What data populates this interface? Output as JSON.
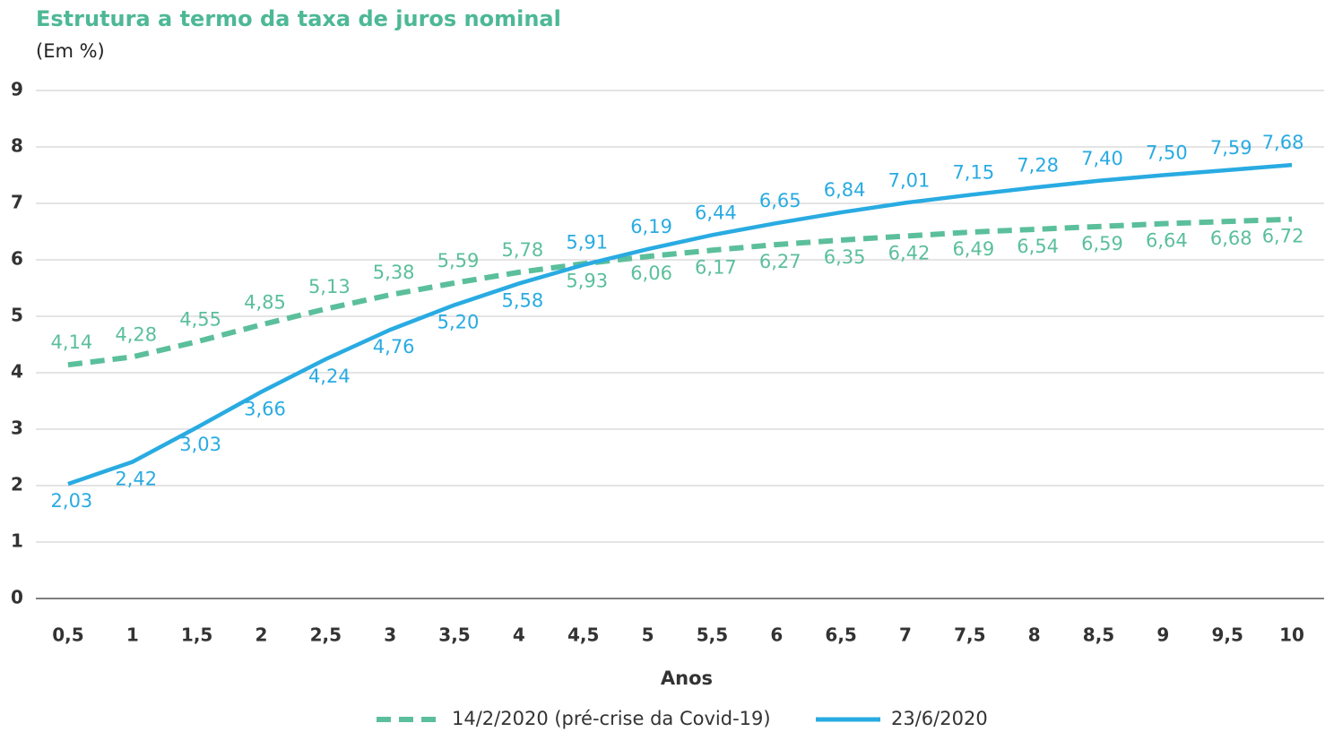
{
  "chart_data": {
    "type": "line",
    "title": "Estrutura a termo da taxa de juros nominal",
    "subtitle": "(Em %)",
    "x_label": "Anos",
    "categories": [
      "0,5",
      "1",
      "1,5",
      "2",
      "2,5",
      "3",
      "3,5",
      "4",
      "4,5",
      "5",
      "5,5",
      "6",
      "6,5",
      "7",
      "7,5",
      "8",
      "8,5",
      "9",
      "9,5",
      "10"
    ],
    "series": [
      {
        "name": "14/2/2020 (pré-crise da Covid-19)",
        "color": "#5bbf9b",
        "line_style": "dashed",
        "values": [
          4.14,
          4.28,
          4.55,
          4.85,
          5.13,
          5.38,
          5.59,
          5.78,
          5.93,
          6.06,
          6.17,
          6.27,
          6.35,
          6.42,
          6.49,
          6.54,
          6.59,
          6.64,
          6.68,
          6.72
        ],
        "value_labels": [
          "4,14",
          "4,28",
          "4,55",
          "4,85",
          "5,13",
          "5,38",
          "5,59",
          "5,78",
          "5,93",
          "6,06",
          "6,17",
          "6,27",
          "6,35",
          "6,42",
          "6,49",
          "6,54",
          "6,59",
          "6,64",
          "6,68",
          "6,72"
        ]
      },
      {
        "name": "23/6/2020",
        "color": "#29abe2",
        "line_style": "solid",
        "values": [
          2.03,
          2.42,
          3.03,
          3.66,
          4.24,
          4.76,
          5.2,
          5.58,
          5.91,
          6.19,
          6.44,
          6.65,
          6.84,
          7.01,
          7.15,
          7.28,
          7.4,
          7.5,
          7.59,
          7.68
        ],
        "value_labels": [
          "2,03",
          "2,42",
          "3,03",
          "3,66",
          "4,24",
          "4,76",
          "5,20",
          "5,58",
          "5,91",
          "6,19",
          "6,44",
          "6,65",
          "6,84",
          "7,01",
          "7,15",
          "7,28",
          "7,40",
          "7,50",
          "7,59",
          "7,68"
        ]
      }
    ],
    "ylim": [
      0,
      9
    ],
    "yticks": [
      0,
      1,
      2,
      3,
      4,
      5,
      6,
      7,
      8,
      9
    ],
    "grid": true
  }
}
